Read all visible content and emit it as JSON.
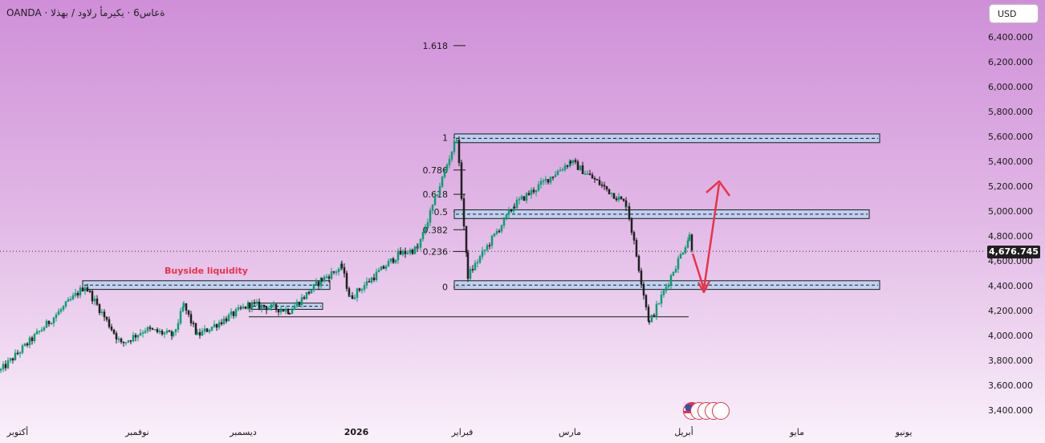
{
  "header": {
    "symbol_title": "OANDA · ةعاس6 · يكيرمأ رلاود / بهذلا"
  },
  "currency_button": "USD",
  "last_price": "4,676.745",
  "colors": {
    "up": "#0b9e72",
    "down": "#1a1a1a",
    "zone_fill": "#b8d3f1",
    "zone_border": "#1a1a1a",
    "annotation": "#e8334a",
    "background_top": "#cf8fd8",
    "background_bottom": "#faf1fb"
  },
  "chart_data": {
    "type": "candlestick",
    "title": "",
    "xlabel": "",
    "ylabel": "",
    "ylim": [
      3300000,
      6550000
    ],
    "y_axis_position": "right",
    "grid": false,
    "y_ticks": [
      "6,400.000",
      "6,200.000",
      "6,000.000",
      "5,800.000",
      "5,600.000",
      "5,400.000",
      "5,200.000",
      "5,000.000",
      "4,800.000",
      "4,600.000",
      "4,400.000",
      "4,200.000",
      "4,000.000",
      "3,800.000",
      "3,600.000",
      "3,400.000"
    ],
    "x_ticks": [
      "أكتوبر",
      "نوفمبر",
      "ديسمبر",
      "2026",
      "فبراير",
      "مارس",
      "أبريل",
      "مايو",
      "يونيو"
    ],
    "last_price_value": 4676745,
    "price_path": [
      {
        "x": "أكتوبر",
        "y": 3720000
      },
      {
        "x": "أكتوبر",
        "y": 4400000
      },
      {
        "x": "أكتوبر",
        "y": 3930000
      },
      {
        "x": "نوفمبر",
        "y": 4050000
      },
      {
        "x": "نوفمبر",
        "y": 4000000
      },
      {
        "x": "نوفمبر",
        "y": 4240000
      },
      {
        "x": "نوفمبر",
        "y": 4000000
      },
      {
        "x": "ديسمبر",
        "y": 4250000
      },
      {
        "x": "ديسمبر",
        "y": 4200000
      },
      {
        "x": "ديسمبر",
        "y": 4450000
      },
      {
        "x": "ديسمبر",
        "y": 4550000
      },
      {
        "x": "2026",
        "y": 4300000
      },
      {
        "x": "2026",
        "y": 4650000
      },
      {
        "x": "2026",
        "y": 4700000
      },
      {
        "x": "فبراير",
        "y": 5600000
      },
      {
        "x": "فبراير",
        "y": 4480000
      },
      {
        "x": "فبراير",
        "y": 5050000
      },
      {
        "x": "مارس",
        "y": 5400000
      },
      {
        "x": "مارس",
        "y": 5050000
      },
      {
        "x": "أبريل",
        "y": 4100000
      },
      {
        "x": "أبريل",
        "y": 4800000
      },
      {
        "x": "أبريل",
        "y": 4680000
      }
    ],
    "fibonacci": {
      "levels": [
        {
          "label": "1.618",
          "value": 6330000
        },
        {
          "label": "1",
          "value": 5590000
        },
        {
          "label": "0.786",
          "value": 5330000
        },
        {
          "label": "0.618",
          "value": 5135000
        },
        {
          "label": "0.5",
          "value": 4995000
        },
        {
          "label": "0.382",
          "value": 4850000
        },
        {
          "label": "0.236",
          "value": 4675000
        },
        {
          "label": "0",
          "value": 4390000
        }
      ]
    },
    "zones": [
      {
        "name": "top-zone",
        "low": 5550000,
        "high": 5620000
      },
      {
        "name": "mid-zone",
        "low": 4940000,
        "high": 5010000
      },
      {
        "name": "base-zone",
        "low": 4370000,
        "high": 4440000
      },
      {
        "name": "buyside-zone",
        "low": 4370000,
        "high": 4440000
      },
      {
        "name": "december-zone",
        "low": 4210000,
        "high": 4260000
      }
    ],
    "annotations": {
      "buyside_label": "Buyside liquidity"
    }
  }
}
